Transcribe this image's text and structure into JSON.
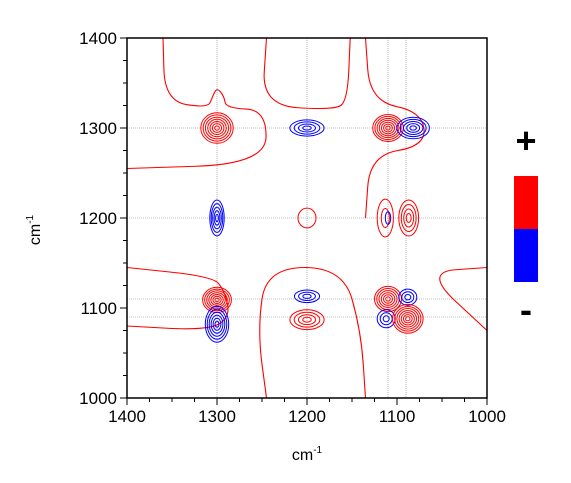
{
  "chart_data": {
    "type": "contour",
    "title": "",
    "xlabel": "cm",
    "xlabel_sup": "-1",
    "ylabel": "cm",
    "ylabel_sup": "-1",
    "xlim": [
      1400,
      1000
    ],
    "ylim": [
      1000,
      1400
    ],
    "x_ticks": [
      1400,
      1300,
      1200,
      1100,
      1000
    ],
    "y_ticks": [
      1000,
      1100,
      1200,
      1300,
      1400
    ],
    "x_tick_labels": [
      "1400",
      "1300",
      "1200",
      "1100",
      "1000"
    ],
    "y_tick_labels": [
      "1000",
      "1100",
      "1200",
      "1300",
      "1400"
    ],
    "gridlines": {
      "x": [
        1300,
        1200,
        1110,
        1090
      ],
      "y": [
        1300,
        1200,
        1110,
        1090
      ]
    },
    "legend": {
      "position": "right",
      "positive_sign": "+",
      "negative_sign": "-",
      "positive_color": "#ff0000",
      "negative_color": "#0000ff"
    },
    "peaks": [
      {
        "x": 1300,
        "y": 1300,
        "sign": "positive",
        "rx": 18,
        "ry": 17,
        "levels": 7
      },
      {
        "x": 1200,
        "y": 1300,
        "sign": "negative",
        "rx": 19,
        "ry": 9,
        "levels": 4
      },
      {
        "x": 1110,
        "y": 1300,
        "sign": "positive",
        "rx": 17,
        "ry": 15,
        "levels": 7
      },
      {
        "x": 1082,
        "y": 1300,
        "sign": "negative",
        "rx": 18,
        "ry": 12,
        "levels": 5
      },
      {
        "x": 1300,
        "y": 1200,
        "sign": "negative",
        "rx": 8,
        "ry": 20,
        "levels": 5
      },
      {
        "x": 1200,
        "y": 1200,
        "sign": "positive",
        "rx": 10,
        "ry": 11,
        "levels": 1
      },
      {
        "x": 1113,
        "y": 1200,
        "sign": "positive",
        "rx": 9,
        "ry": 21,
        "levels": 2
      },
      {
        "x": 1110,
        "y": 1200,
        "sign": "negative",
        "rx": 3,
        "ry": 7,
        "levels": 1
      },
      {
        "x": 1087,
        "y": 1200,
        "sign": "positive",
        "rx": 11,
        "ry": 20,
        "levels": 4
      },
      {
        "x": 1300,
        "y": 1109,
        "sign": "positive",
        "rx": 16,
        "ry": 14,
        "levels": 7
      },
      {
        "x": 1300,
        "y": 1082,
        "sign": "negative",
        "rx": 13,
        "ry": 20,
        "levels": 6
      },
      {
        "x": 1200,
        "y": 1113,
        "sign": "negative",
        "rx": 14,
        "ry": 7,
        "levels": 3
      },
      {
        "x": 1200,
        "y": 1087,
        "sign": "positive",
        "rx": 19,
        "ry": 11,
        "levels": 4
      },
      {
        "x": 1110,
        "y": 1110,
        "sign": "positive",
        "rx": 15,
        "ry": 14,
        "levels": 6
      },
      {
        "x": 1088,
        "y": 1112,
        "sign": "negative",
        "rx": 10,
        "ry": 9,
        "levels": 3
      },
      {
        "x": 1112,
        "y": 1088,
        "sign": "negative",
        "rx": 10,
        "ry": 10,
        "levels": 3
      },
      {
        "x": 1088,
        "y": 1088,
        "sign": "positive",
        "rx": 17,
        "ry": 16,
        "levels": 7
      }
    ],
    "background_contours": [
      {
        "sign": "positive",
        "points": [
          [
            1360,
            1400
          ],
          [
            1358,
            1330
          ],
          [
            1310,
            1322
          ],
          [
            1305,
            1335
          ],
          [
            1300,
            1345
          ],
          [
            1292,
            1335
          ],
          [
            1290,
            1322
          ],
          [
            1245,
            1320
          ],
          [
            1246,
            1260
          ],
          [
            1400,
            1255
          ]
        ]
      },
      {
        "sign": "positive",
        "points": [
          [
            1245,
            1400
          ],
          [
            1250,
            1325
          ],
          [
            1170,
            1320
          ],
          [
            1155,
            1330
          ],
          [
            1152,
            1400
          ]
        ]
      },
      {
        "sign": "positive",
        "points": [
          [
            1135,
            1400
          ],
          [
            1130,
            1330
          ],
          [
            1072,
            1318
          ],
          [
            1068,
            1280
          ],
          [
            1130,
            1270
          ],
          [
            1135,
            1200
          ]
        ]
      },
      {
        "sign": "positive",
        "points": [
          [
            1400,
            1145
          ],
          [
            1305,
            1135
          ],
          [
            1292,
            1120
          ],
          [
            1285,
            1090
          ],
          [
            1310,
            1075
          ],
          [
            1400,
            1080
          ]
        ]
      },
      {
        "sign": "positive",
        "points": [
          [
            1245,
            1000
          ],
          [
            1255,
            1075
          ],
          [
            1245,
            1145
          ],
          [
            1160,
            1145
          ],
          [
            1140,
            1075
          ],
          [
            1135,
            1000
          ]
        ]
      },
      {
        "sign": "positive",
        "points": [
          [
            1000,
            1145
          ],
          [
            1070,
            1140
          ],
          [
            1000,
            1075
          ]
        ]
      }
    ]
  }
}
